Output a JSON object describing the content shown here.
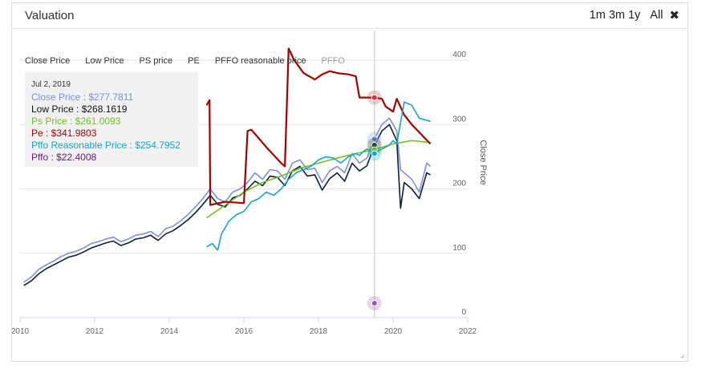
{
  "header": {
    "title": "Valuation"
  },
  "range_buttons": [
    "1m",
    "3m",
    "1y",
    "All"
  ],
  "legend": [
    {
      "label": "Close Price",
      "active": true
    },
    {
      "label": "Low Price",
      "active": true
    },
    {
      "label": "PS price",
      "active": true
    },
    {
      "label": "PE",
      "active": true
    },
    {
      "label": "PFFO reasonable price",
      "active": true
    },
    {
      "label": "PFFO",
      "active": false
    }
  ],
  "tooltip": {
    "date": "Jul 2, 2019",
    "rows": [
      {
        "text": "Close Price : $277.7811",
        "color": "#7b8fe6"
      },
      {
        "text": "Low Price : $268.1619",
        "color": "#111111"
      },
      {
        "text": "Ps Price : $261.0093",
        "color": "#76c11f"
      },
      {
        "text": "Pe : $341.9803",
        "color": "#b00000"
      },
      {
        "text": "Pffo Reasonable Price : $254.7952",
        "color": "#1aa5c6"
      },
      {
        "text": "Pffo : $22.4008",
        "color": "#6a1c86"
      }
    ]
  },
  "chart_data": {
    "type": "line",
    "xlabel": "",
    "ylabel": "Close Price",
    "xlim": [
      2010,
      2022
    ],
    "ylim": [
      0,
      420
    ],
    "x_ticks": [
      "2010",
      "2012",
      "2014",
      "2016",
      "2018",
      "2020",
      "2022"
    ],
    "y_ticks": [
      "0",
      "100",
      "200",
      "300",
      "400"
    ],
    "grid": true,
    "crosshair_x": 2019.5,
    "series": [
      {
        "name": "Close Price",
        "color": "#7b8fe6",
        "x": [
          2010.1,
          2010.3,
          2010.5,
          2010.7,
          2010.9,
          2011.1,
          2011.3,
          2011.5,
          2011.7,
          2011.9,
          2012.1,
          2012.3,
          2012.5,
          2012.7,
          2012.9,
          2013.1,
          2013.3,
          2013.5,
          2013.7,
          2013.9,
          2014.1,
          2014.3,
          2014.5,
          2014.7,
          2014.9,
          2015.1,
          2015.3,
          2015.5,
          2015.7,
          2015.9,
          2016.1,
          2016.3,
          2016.5,
          2016.7,
          2016.9,
          2017.1,
          2017.3,
          2017.5,
          2017.7,
          2017.9,
          2018.1,
          2018.3,
          2018.5,
          2018.7,
          2018.9,
          2019.1,
          2019.3,
          2019.5,
          2019.7,
          2019.9,
          2020.1,
          2020.2,
          2020.3,
          2020.5,
          2020.7,
          2020.9,
          2021.0
        ],
        "y": [
          55,
          63,
          75,
          82,
          88,
          95,
          100,
          103,
          108,
          115,
          118,
          122,
          125,
          118,
          122,
          128,
          130,
          134,
          126,
          138,
          142,
          150,
          160,
          172,
          185,
          200,
          185,
          180,
          195,
          200,
          210,
          225,
          215,
          230,
          228,
          215,
          240,
          245,
          230,
          232,
          210,
          228,
          235,
          225,
          255,
          240,
          248,
          278,
          300,
          310,
          290,
          230,
          225,
          215,
          195,
          240,
          235
        ]
      },
      {
        "name": "Low Price",
        "color": "#0f1f38",
        "x": [
          2010.1,
          2010.3,
          2010.5,
          2010.7,
          2010.9,
          2011.1,
          2011.3,
          2011.5,
          2011.7,
          2011.9,
          2012.1,
          2012.3,
          2012.5,
          2012.7,
          2012.9,
          2013.1,
          2013.3,
          2013.5,
          2013.7,
          2013.9,
          2014.1,
          2014.3,
          2014.5,
          2014.7,
          2014.9,
          2015.1,
          2015.3,
          2015.5,
          2015.7,
          2015.9,
          2016.1,
          2016.3,
          2016.5,
          2016.7,
          2016.9,
          2017.1,
          2017.3,
          2017.5,
          2017.7,
          2017.9,
          2018.1,
          2018.3,
          2018.5,
          2018.7,
          2018.9,
          2019.1,
          2019.3,
          2019.5,
          2019.7,
          2019.9,
          2020.1,
          2020.2,
          2020.3,
          2020.5,
          2020.7,
          2020.9,
          2021.0
        ],
        "y": [
          50,
          57,
          68,
          76,
          82,
          88,
          94,
          97,
          102,
          108,
          112,
          116,
          119,
          112,
          116,
          122,
          124,
          128,
          120,
          130,
          135,
          143,
          152,
          163,
          176,
          190,
          176,
          172,
          186,
          190,
          200,
          212,
          205,
          220,
          218,
          205,
          228,
          235,
          220,
          222,
          198,
          216,
          225,
          212,
          240,
          228,
          236,
          268,
          290,
          300,
          275,
          170,
          210,
          200,
          185,
          225,
          222
        ]
      },
      {
        "name": "PS price",
        "color": "#76c11f",
        "x": [
          2015.0,
          2015.5,
          2016.0,
          2016.5,
          2017.0,
          2017.5,
          2018.0,
          2018.5,
          2019.0,
          2019.5,
          2020.0,
          2020.5,
          2021.0
        ],
        "y": [
          155,
          175,
          195,
          210,
          220,
          232,
          240,
          248,
          255,
          261,
          270,
          275,
          272
        ]
      },
      {
        "name": "PE",
        "color": "#a30000",
        "x": [
          2015.0,
          2015.08,
          2015.1,
          2015.5,
          2016.0,
          2016.1,
          2016.2,
          2016.6,
          2017.0,
          2017.1,
          2017.2,
          2017.35,
          2017.6,
          2017.9,
          2018.1,
          2018.3,
          2018.5,
          2018.8,
          2019.0,
          2019.1,
          2019.2,
          2019.5,
          2019.7,
          2019.8,
          2020.0,
          2020.1,
          2020.3,
          2020.5,
          2020.7,
          2021.0
        ],
        "y": [
          330,
          338,
          175,
          180,
          178,
          290,
          292,
          265,
          240,
          235,
          418,
          400,
          380,
          370,
          378,
          383,
          380,
          378,
          375,
          342,
          342,
          342,
          340,
          328,
          320,
          340,
          315,
          300,
          288,
          270
        ]
      },
      {
        "name": "PFFO reasonable price",
        "color": "#1aa5c6",
        "x": [
          2015.0,
          2015.15,
          2015.3,
          2015.4,
          2015.6,
          2015.8,
          2016.0,
          2016.2,
          2016.4,
          2016.6,
          2016.8,
          2017.0,
          2017.2,
          2017.4,
          2017.6,
          2017.8,
          2018.0,
          2018.2,
          2018.4,
          2018.6,
          2018.8,
          2019.0,
          2019.1,
          2019.2,
          2019.3,
          2019.5,
          2019.7,
          2019.9,
          2020.0,
          2020.1,
          2020.3,
          2020.5,
          2020.7,
          2021.0
        ],
        "y": [
          110,
          115,
          105,
          130,
          150,
          160,
          165,
          180,
          185,
          195,
          190,
          200,
          215,
          225,
          230,
          235,
          245,
          250,
          248,
          240,
          250,
          255,
          252,
          258,
          262,
          255,
          262,
          268,
          275,
          270,
          335,
          330,
          310,
          305
        ]
      }
    ]
  }
}
